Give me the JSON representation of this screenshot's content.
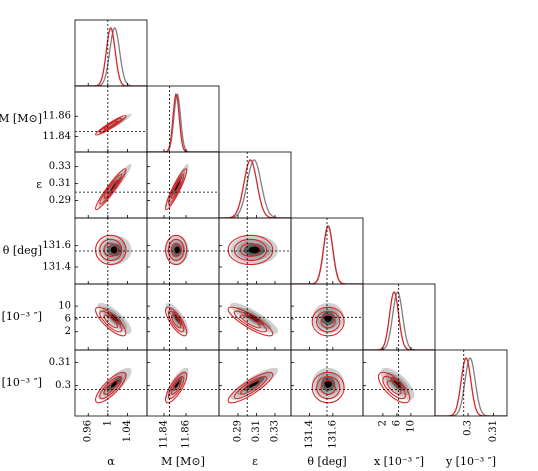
{
  "chart_data": {
    "type": "corner",
    "parameters": [
      {
        "label": "α",
        "lim": [
          0.933,
          1.08
        ],
        "ticks": [
          0.96,
          1,
          1.04
        ],
        "truth": 1.0
      },
      {
        "label": "M [M⊙]",
        "lim": [
          11.8245,
          11.89
        ],
        "ticks": [
          11.84,
          11.86
        ],
        "truth": 11.845
      },
      {
        "label": "ε",
        "lim": [
          0.2695,
          0.3473
        ],
        "ticks": [
          0.29,
          0.31,
          0.33
        ],
        "truth": 0.3
      },
      {
        "label": "θ [deg]",
        "lim": [
          131.24,
          131.86
        ],
        "ticks": [
          131.4,
          131.6
        ],
        "truth": 131.55
      },
      {
        "label": "x [10⁻³ ″]",
        "lim": [
          -3.7,
          16.9
        ],
        "ticks": [
          2,
          6,
          10
        ],
        "truth": 6.5
      },
      {
        "label": "y [10⁻³ ″]",
        "lim": [
          0.287,
          0.3153
        ],
        "ticks": [
          0.3,
          0.31
        ],
        "truth": 0.2983
      }
    ],
    "posteriors": [
      {
        "color": "#808080",
        "mean": [
          1.014,
          11.852,
          0.3075,
          131.56,
          6.2,
          0.3008
        ],
        "sd": [
          0.01,
          0.003,
          0.0075,
          0.04,
          1.4,
          0.002
        ]
      },
      {
        "color": "#d62728",
        "mean": [
          1.006,
          11.851,
          0.3035,
          131.56,
          5.2,
          0.2992
        ],
        "sd": [
          0.009,
          0.0028,
          0.007,
          0.04,
          1.3,
          0.0019
        ]
      }
    ],
    "correlations": [
      [
        0.95
      ],
      [
        0.95,
        0.92
      ],
      [
        0,
        0,
        0
      ],
      [
        -0.8,
        -0.78,
        -0.85,
        0
      ],
      [
        0.8,
        0.78,
        0.85,
        0,
        -0.7
      ]
    ]
  }
}
